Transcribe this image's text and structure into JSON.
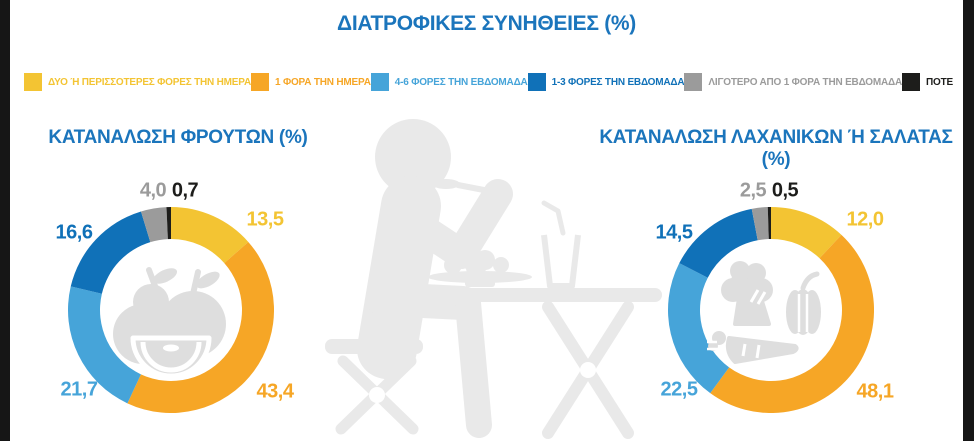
{
  "page": {
    "title": "ΔΙΑΤΡΟΦΙΚΕΣ ΣΥΝΗΘΕΙΕΣ (%)"
  },
  "palette": {
    "yellow": "#F3C433",
    "orange": "#F6A626",
    "lightblue": "#46A4D9",
    "darkblue": "#1071B8",
    "gray": "#9B9B9B",
    "black": "#1D1D1B",
    "titleblue": "#1B75BC",
    "figure": "#E9E9E9",
    "icon": "#DEDEDE"
  },
  "legend": {
    "items": [
      {
        "color": "yellow",
        "label": "ΔΥΟ Ή ΠΕΡΙΣΣΟΤΕΡΕΣ ΦΟΡΕΣ ΤΗΝ ΗΜΕΡΑ"
      },
      {
        "color": "orange",
        "label": "1 ΦΟΡΑ ΤΗΝ ΗΜΕΡΑ"
      },
      {
        "color": "lightblue",
        "label": "4-6 ΦΟΡΕΣ ΤΗΝ ΕΒΔΟΜΑΔΑ"
      },
      {
        "color": "darkblue",
        "label": "1-3 ΦΟΡΕΣ ΤΗΝ ΕΒΔΟΜΑΔΑ"
      },
      {
        "color": "gray",
        "label": "ΛΙΓΟΤΕΡΟ ΑΠΟ 1 ΦΟΡΑ ΤΗΝ ΕΒΔΟΜΑΔΑ"
      },
      {
        "color": "black",
        "label": "ΠΟΤΕ"
      }
    ]
  },
  "chart_data": [
    {
      "type": "pie",
      "subtype": "donut",
      "title": "ΚΑΤΑΝΑΛΩΣΗ ΦΡΟΥΤΩΝ (%)",
      "categories": [
        "ΔΥΟ Ή ΠΕΡΙΣΣΟΤΕΡΕΣ ΦΟΡΕΣ ΤΗΝ ΗΜΕΡΑ",
        "1 ΦΟΡΑ ΤΗΝ ΗΜΕΡΑ",
        "4-6 ΦΟΡΕΣ ΤΗΝ ΕΒΔΟΜΑΔΑ",
        "1-3 ΦΟΡΕΣ ΤΗΝ ΕΒΔΟΜΑΔΑ",
        "ΛΙΓΟΤΕΡΟ ΑΠΟ 1 ΦΟΡΑ ΤΗΝ ΕΒΔΟΜΑΔΑ",
        "ΠΟΤΕ"
      ],
      "values": [
        13.5,
        43.4,
        21.7,
        16.6,
        4.0,
        0.7
      ],
      "values_display": [
        "13,5",
        "43,4",
        "21,7",
        "16,6",
        "4,0",
        "0,7"
      ],
      "colors": [
        "yellow",
        "orange",
        "lightblue",
        "darkblue",
        "gray",
        "black"
      ],
      "start_angle_deg": 0,
      "direction": "clockwise",
      "center_icon": "fruits"
    },
    {
      "type": "pie",
      "subtype": "donut",
      "title": "ΚΑΤΑΝΑΛΩΣΗ ΛΑΧΑΝΙΚΩΝ Ή ΣΑΛΑΤΑΣ (%)",
      "categories": [
        "ΔΥΟ Ή ΠΕΡΙΣΣΟΤΕΡΕΣ ΦΟΡΕΣ ΤΗΝ ΗΜΕΡΑ",
        "1 ΦΟΡΑ ΤΗΝ ΗΜΕΡΑ",
        "4-6 ΦΟΡΕΣ ΤΗΝ ΕΒΔΟΜΑΔΑ",
        "1-3 ΦΟΡΕΣ ΤΗΝ ΕΒΔΟΜΑΔΑ",
        "ΛΙΓΟΤΕΡΟ ΑΠΟ 1 ΦΟΡΑ ΤΗΝ ΕΒΔΟΜΑΔΑ",
        "ΠΟΤΕ"
      ],
      "values": [
        12.0,
        48.1,
        22.5,
        14.5,
        2.5,
        0.5
      ],
      "values_display": [
        "12,0",
        "48,1",
        "22,5",
        "14,5",
        "2,5",
        "0,5"
      ],
      "colors": [
        "yellow",
        "orange",
        "lightblue",
        "darkblue",
        "gray",
        "black"
      ],
      "start_angle_deg": 0,
      "direction": "clockwise",
      "center_icon": "vegetables"
    }
  ]
}
